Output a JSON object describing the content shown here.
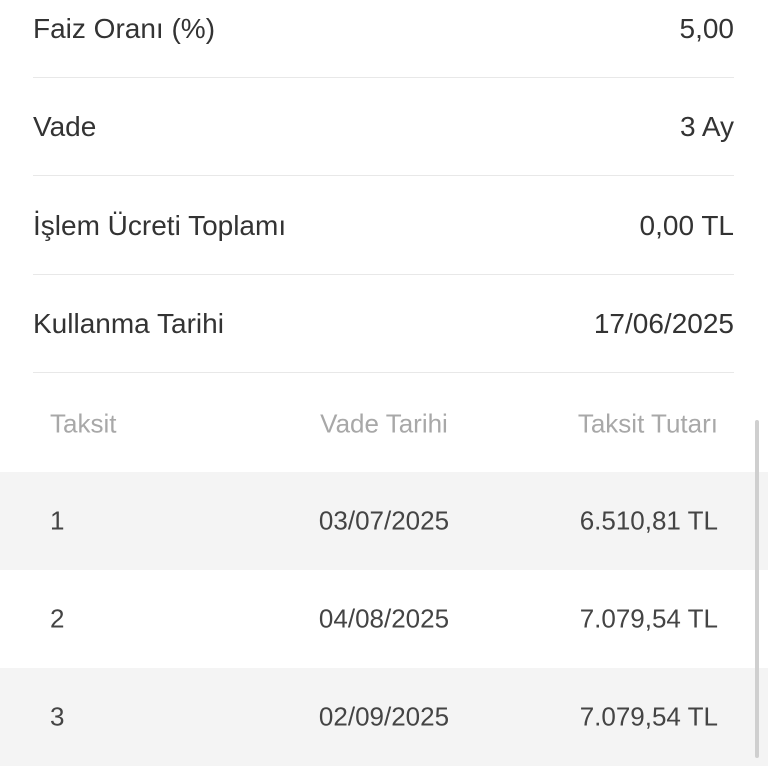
{
  "summary": [
    {
      "label": "Faiz Oranı (%)",
      "value": "5,00"
    },
    {
      "label": "Vade",
      "value": "3 Ay"
    },
    {
      "label": "İşlem Ücreti Toplamı",
      "value": "0,00 TL"
    },
    {
      "label": "Kullanma Tarihi",
      "value": "17/06/2025"
    }
  ],
  "table": {
    "headers": [
      "Taksit",
      "Vade Tarihi",
      "Taksit Tutarı"
    ],
    "rows": [
      [
        "1",
        "03/07/2025",
        "6.510,81 TL"
      ],
      [
        "2",
        "04/08/2025",
        "7.079,54 TL"
      ],
      [
        "3",
        "02/09/2025",
        "7.079,54 TL"
      ]
    ]
  }
}
